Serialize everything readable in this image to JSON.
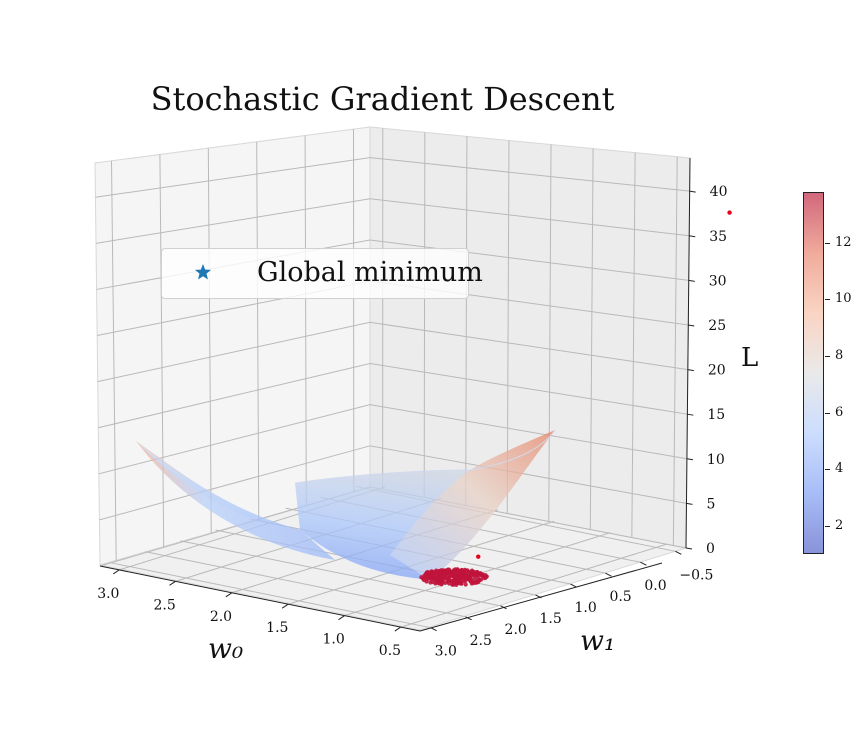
{
  "chart_data": {
    "type": "surface3d-scatter",
    "title": "Stochastic Gradient Descent",
    "xlabel": "w₀",
    "ylabel": "w₁",
    "zlabel": "L",
    "x_ticks": [
      "3.0",
      "2.5",
      "2.0",
      "1.5",
      "1.0",
      "0.5"
    ],
    "y_ticks": [
      "3.0",
      "2.5",
      "2.0",
      "1.5",
      "1.0",
      "0.5",
      "0.0",
      "−0.5"
    ],
    "z_ticks": [
      "0",
      "5",
      "10",
      "15",
      "20",
      "25",
      "30",
      "35",
      "40"
    ],
    "zlim": [
      0,
      40
    ],
    "legend": {
      "entries": [
        {
          "label": "Global minimum",
          "marker": "star",
          "color": "#1f77b4"
        }
      ],
      "placement": "upper-left"
    },
    "colorbar": {
      "cmap": "coolwarm",
      "ticks": [
        "2",
        "4",
        "6",
        "8",
        "10",
        "12"
      ],
      "range": [
        1,
        13.8
      ]
    },
    "sgd_points": [
      {
        "w0": -0.4,
        "w1": -0.1,
        "L": 39.5
      },
      {
        "w0": 0.9,
        "w1": 1.4,
        "L": 2.5
      }
    ],
    "sgd_cluster": {
      "w0_center": 1.0,
      "w1_center": 1.6,
      "L_approx": 0.5,
      "color": "#c0143c"
    },
    "colors": {
      "point": "#e8001c",
      "cluster": "#c0143c",
      "grid": "#b0b0b0",
      "pane_left": "#f5f5f5",
      "pane_right": "#ececec"
    }
  }
}
